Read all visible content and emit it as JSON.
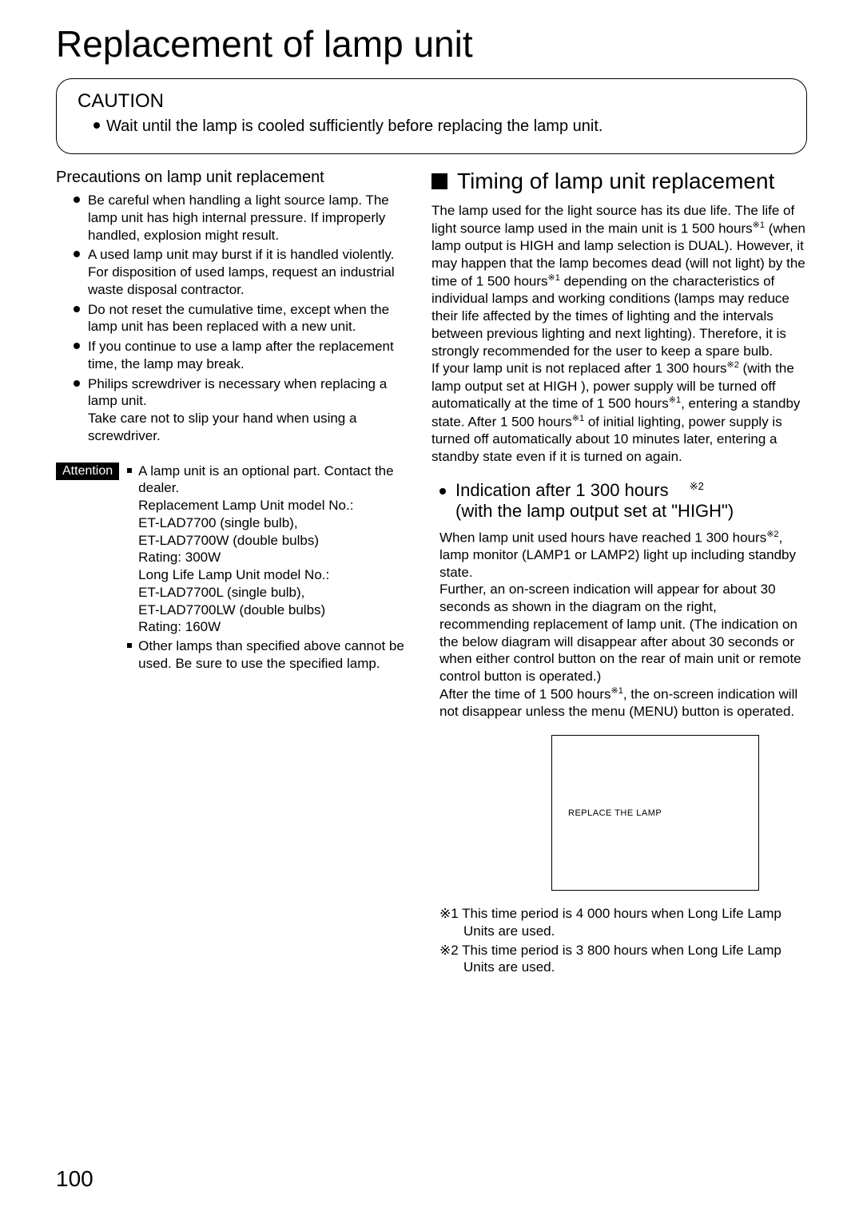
{
  "page_title": "Replacement of lamp unit",
  "caution": {
    "title": "CAUTION",
    "text": "Wait until the lamp is cooled sufficiently before replacing the lamp unit."
  },
  "precautions": {
    "heading": "Precautions on lamp unit replacement",
    "items": [
      "Be careful when handling a light source lamp.  The lamp unit has high internal pressure. If improperly handled, explosion might result.",
      "A used lamp unit may burst if it is handled violently.\nFor disposition of used lamps, request an industrial waste disposal contractor.",
      "Do not reset the cumulative time, except when the lamp unit has been replaced with a new unit.",
      "If you continue to use a lamp after the replacement time, the lamp may break.",
      "Philips screwdriver is necessary when replacing a lamp unit.\nTake care not to slip your hand when using a screwdriver."
    ]
  },
  "attention": {
    "label": "Attention",
    "items": [
      "A lamp unit is an optional part.  Contact the dealer.\nReplacement Lamp Unit model No.:\nET-LAD7700 (single bulb),\nET-LAD7700W (double bulbs)\nRating: 300W\nLong Life Lamp Unit model No.:\nET-LAD7700L (single bulb),\nET-LAD7700LW (double bulbs)\nRating: 160W",
      "Other lamps than specified above cannot be used.  Be sure to use the specified lamp."
    ]
  },
  "timing": {
    "heading": "Timing of lamp unit replacement",
    "body_parts": [
      "The lamp used for the light source has its due life.  The life of light source lamp used in the main unit is 1 500 hours",
      "  (when lamp output is HIGH and lamp selection is DUAL). However, it may happen that the lamp becomes dead (will not light) by the time of 1 500 hours",
      " depending on the characteristics of individual lamps and working conditions (lamps may reduce their life affected by the times of lighting and the intervals between previous lighting and next lighting). Therefore, it is strongly recommended for the user to keep a spare bulb.",
      "If your lamp unit is not replaced after 1 300 hours",
      " (with the lamp output set at  HIGH ), power supply will be turned off automatically at the time of 1 500 hours",
      ", entering a standby state.  After 1 500 hours",
      " of initial lighting, power supply is turned off automatically about 10 minutes later, entering a standby state even if it is turned on again."
    ],
    "ref1": "※1",
    "ref2": "※2"
  },
  "indication": {
    "heading_line1": "Indication after 1 300 hours",
    "heading_line2": "(with the lamp output set at \"HIGH\")",
    "note_ref": "※2",
    "body_parts": [
      "When lamp unit used hours have reached 1 300 hours",
      ", lamp monitor (LAMP1 or LAMP2) light up including standby state.",
      "Further, an on-screen indication will appear for about 30 seconds as shown in the diagram on the right, recommending replacement of lamp unit. (The indication on the below diagram will disappear after about 30 seconds or when either control button on the rear of main unit or remote control button is operated.)",
      "After the time of 1 500 hours",
      ", the on-screen indication will not disappear unless the menu (MENU) button is operated."
    ]
  },
  "diagram": {
    "text": "REPLACE THE LAMP"
  },
  "footnotes": [
    "※1 This time period is 4 000 hours when Long Life Lamp Units are used.",
    "※2 This time period is 3 800 hours when Long Life Lamp Units are used."
  ],
  "page_number": "100"
}
